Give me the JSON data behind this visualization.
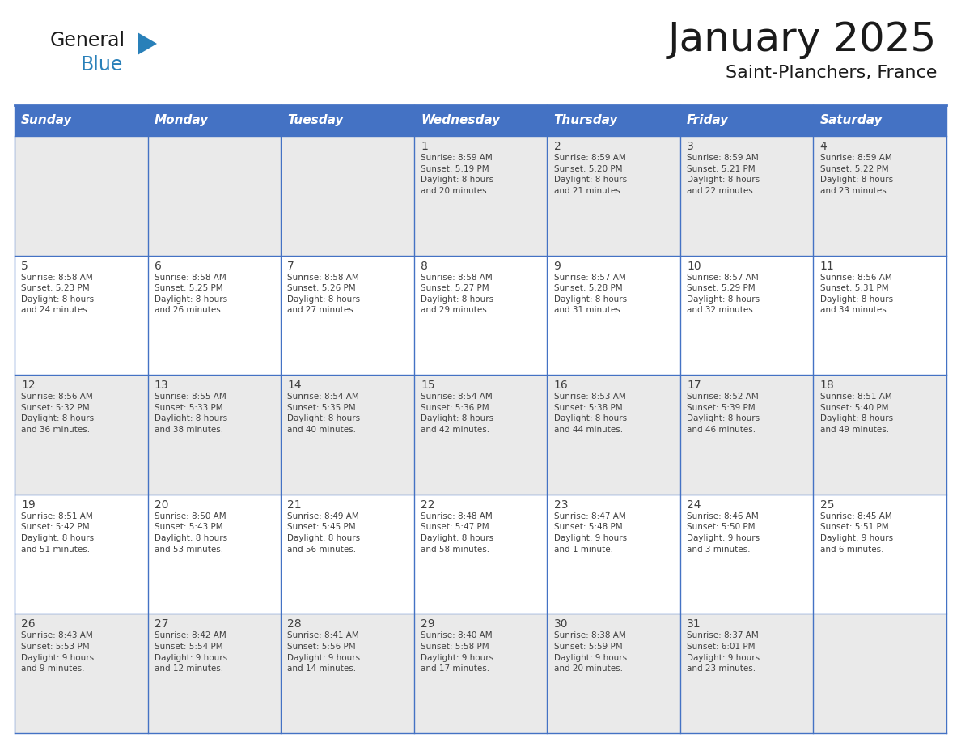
{
  "title": "January 2025",
  "subtitle": "Saint-Planchers, France",
  "header_bg": "#4472C4",
  "header_text_color": "#FFFFFF",
  "cell_bg_odd": "#EAEAEA",
  "cell_bg_even": "#FFFFFF",
  "border_color": "#4472C4",
  "day_names": [
    "Sunday",
    "Monday",
    "Tuesday",
    "Wednesday",
    "Thursday",
    "Friday",
    "Saturday"
  ],
  "text_color": "#404040",
  "logo_general_color": "#1a1a1a",
  "logo_blue_color": "#2980B9",
  "title_fontsize": 36,
  "subtitle_fontsize": 16,
  "header_fontsize": 11,
  "day_num_fontsize": 10,
  "cell_text_fontsize": 7.5,
  "calendar_data": [
    [
      {
        "day": "",
        "info": ""
      },
      {
        "day": "",
        "info": ""
      },
      {
        "day": "",
        "info": ""
      },
      {
        "day": "1",
        "info": "Sunrise: 8:59 AM\nSunset: 5:19 PM\nDaylight: 8 hours\nand 20 minutes."
      },
      {
        "day": "2",
        "info": "Sunrise: 8:59 AM\nSunset: 5:20 PM\nDaylight: 8 hours\nand 21 minutes."
      },
      {
        "day": "3",
        "info": "Sunrise: 8:59 AM\nSunset: 5:21 PM\nDaylight: 8 hours\nand 22 minutes."
      },
      {
        "day": "4",
        "info": "Sunrise: 8:59 AM\nSunset: 5:22 PM\nDaylight: 8 hours\nand 23 minutes."
      }
    ],
    [
      {
        "day": "5",
        "info": "Sunrise: 8:58 AM\nSunset: 5:23 PM\nDaylight: 8 hours\nand 24 minutes."
      },
      {
        "day": "6",
        "info": "Sunrise: 8:58 AM\nSunset: 5:25 PM\nDaylight: 8 hours\nand 26 minutes."
      },
      {
        "day": "7",
        "info": "Sunrise: 8:58 AM\nSunset: 5:26 PM\nDaylight: 8 hours\nand 27 minutes."
      },
      {
        "day": "8",
        "info": "Sunrise: 8:58 AM\nSunset: 5:27 PM\nDaylight: 8 hours\nand 29 minutes."
      },
      {
        "day": "9",
        "info": "Sunrise: 8:57 AM\nSunset: 5:28 PM\nDaylight: 8 hours\nand 31 minutes."
      },
      {
        "day": "10",
        "info": "Sunrise: 8:57 AM\nSunset: 5:29 PM\nDaylight: 8 hours\nand 32 minutes."
      },
      {
        "day": "11",
        "info": "Sunrise: 8:56 AM\nSunset: 5:31 PM\nDaylight: 8 hours\nand 34 minutes."
      }
    ],
    [
      {
        "day": "12",
        "info": "Sunrise: 8:56 AM\nSunset: 5:32 PM\nDaylight: 8 hours\nand 36 minutes."
      },
      {
        "day": "13",
        "info": "Sunrise: 8:55 AM\nSunset: 5:33 PM\nDaylight: 8 hours\nand 38 minutes."
      },
      {
        "day": "14",
        "info": "Sunrise: 8:54 AM\nSunset: 5:35 PM\nDaylight: 8 hours\nand 40 minutes."
      },
      {
        "day": "15",
        "info": "Sunrise: 8:54 AM\nSunset: 5:36 PM\nDaylight: 8 hours\nand 42 minutes."
      },
      {
        "day": "16",
        "info": "Sunrise: 8:53 AM\nSunset: 5:38 PM\nDaylight: 8 hours\nand 44 minutes."
      },
      {
        "day": "17",
        "info": "Sunrise: 8:52 AM\nSunset: 5:39 PM\nDaylight: 8 hours\nand 46 minutes."
      },
      {
        "day": "18",
        "info": "Sunrise: 8:51 AM\nSunset: 5:40 PM\nDaylight: 8 hours\nand 49 minutes."
      }
    ],
    [
      {
        "day": "19",
        "info": "Sunrise: 8:51 AM\nSunset: 5:42 PM\nDaylight: 8 hours\nand 51 minutes."
      },
      {
        "day": "20",
        "info": "Sunrise: 8:50 AM\nSunset: 5:43 PM\nDaylight: 8 hours\nand 53 minutes."
      },
      {
        "day": "21",
        "info": "Sunrise: 8:49 AM\nSunset: 5:45 PM\nDaylight: 8 hours\nand 56 minutes."
      },
      {
        "day": "22",
        "info": "Sunrise: 8:48 AM\nSunset: 5:47 PM\nDaylight: 8 hours\nand 58 minutes."
      },
      {
        "day": "23",
        "info": "Sunrise: 8:47 AM\nSunset: 5:48 PM\nDaylight: 9 hours\nand 1 minute."
      },
      {
        "day": "24",
        "info": "Sunrise: 8:46 AM\nSunset: 5:50 PM\nDaylight: 9 hours\nand 3 minutes."
      },
      {
        "day": "25",
        "info": "Sunrise: 8:45 AM\nSunset: 5:51 PM\nDaylight: 9 hours\nand 6 minutes."
      }
    ],
    [
      {
        "day": "26",
        "info": "Sunrise: 8:43 AM\nSunset: 5:53 PM\nDaylight: 9 hours\nand 9 minutes."
      },
      {
        "day": "27",
        "info": "Sunrise: 8:42 AM\nSunset: 5:54 PM\nDaylight: 9 hours\nand 12 minutes."
      },
      {
        "day": "28",
        "info": "Sunrise: 8:41 AM\nSunset: 5:56 PM\nDaylight: 9 hours\nand 14 minutes."
      },
      {
        "day": "29",
        "info": "Sunrise: 8:40 AM\nSunset: 5:58 PM\nDaylight: 9 hours\nand 17 minutes."
      },
      {
        "day": "30",
        "info": "Sunrise: 8:38 AM\nSunset: 5:59 PM\nDaylight: 9 hours\nand 20 minutes."
      },
      {
        "day": "31",
        "info": "Sunrise: 8:37 AM\nSunset: 6:01 PM\nDaylight: 9 hours\nand 23 minutes."
      },
      {
        "day": "",
        "info": ""
      }
    ]
  ]
}
